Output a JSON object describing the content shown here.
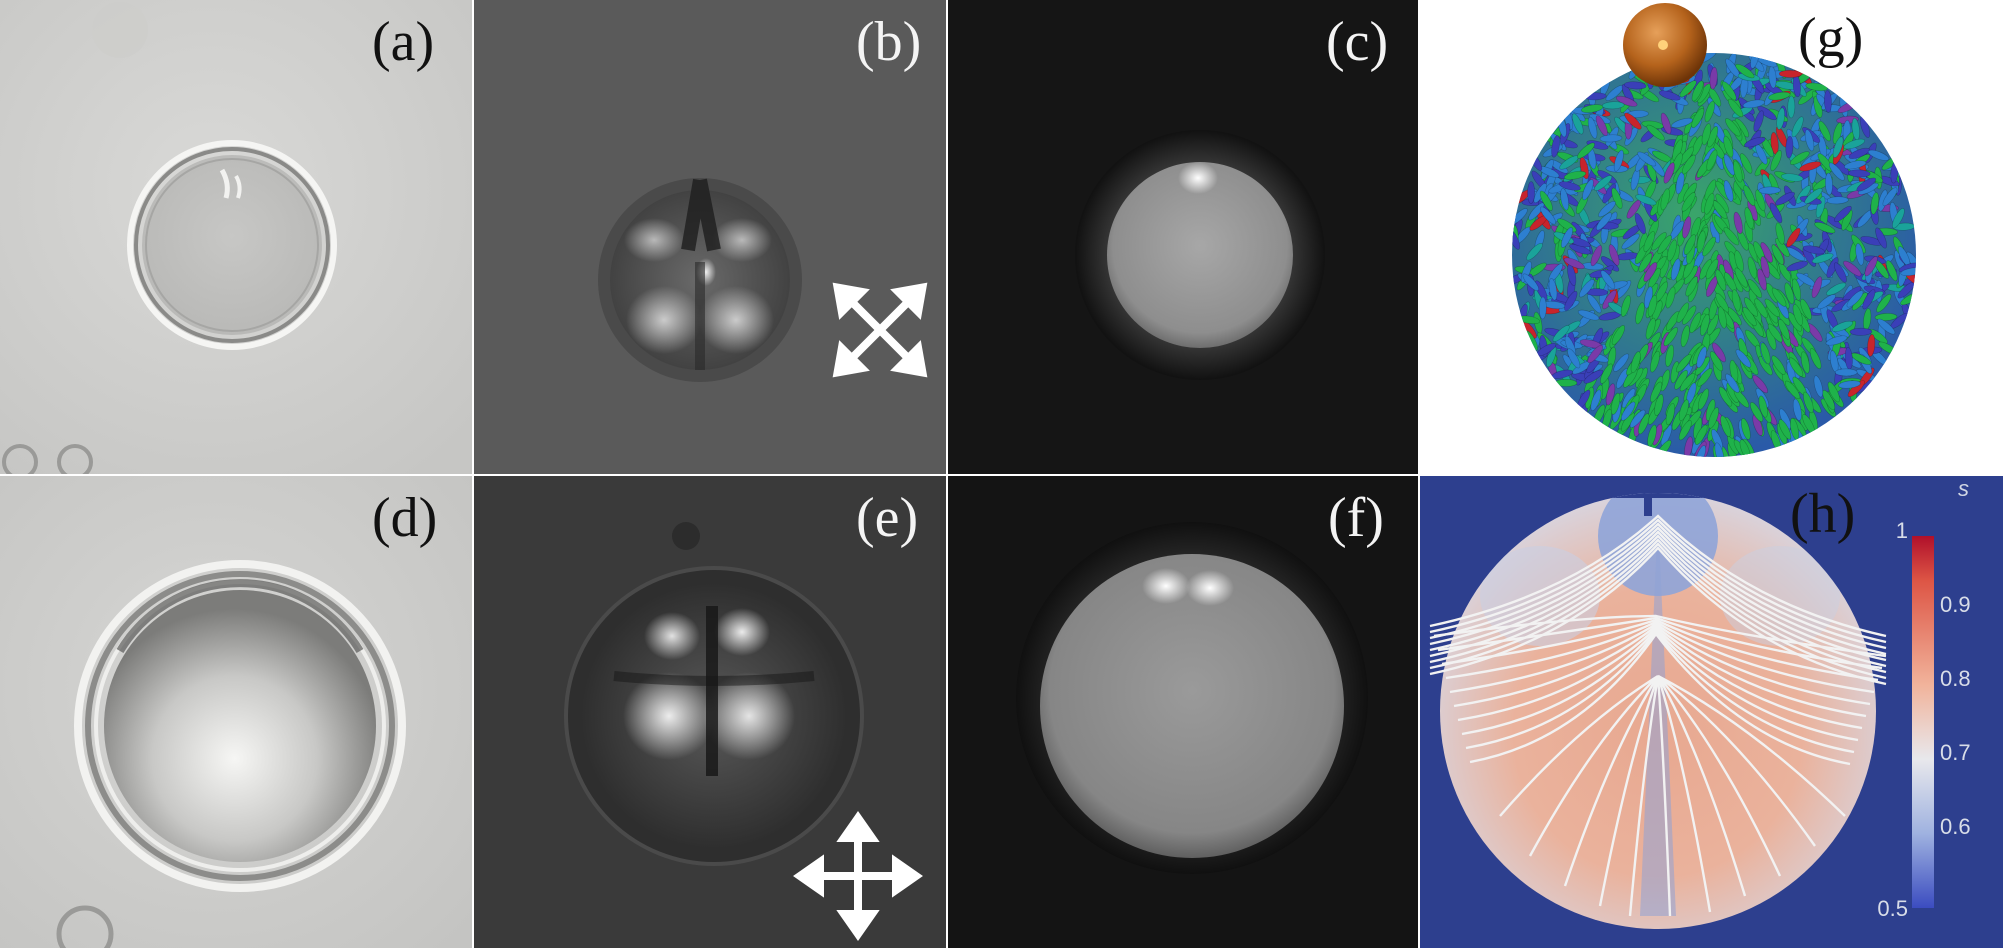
{
  "figure": {
    "panels": [
      {
        "id": "a",
        "label": "(a)"
      },
      {
        "id": "b",
        "label": "(b)"
      },
      {
        "id": "c",
        "label": "(c)"
      },
      {
        "id": "d",
        "label": "(d)"
      },
      {
        "id": "e",
        "label": "(e)"
      },
      {
        "id": "f",
        "label": "(f)"
      },
      {
        "id": "g",
        "label": "(g)"
      },
      {
        "id": "h",
        "label": "(h)"
      }
    ],
    "colorbar": {
      "variable": "s",
      "ticks": [
        "1",
        "0.9",
        "0.8",
        "0.7",
        "0.6",
        "0.5"
      ],
      "colors": {
        "high": "#b0102a",
        "mid": "#eeeeee",
        "low": "#3b4cc0"
      }
    },
    "colors": {
      "h_background": "#2d3f8e",
      "g_particle": "#b5631c",
      "rods": [
        "#1fb24a",
        "#2d7fd0",
        "#3a3fb8",
        "#7a3aa8",
        "#c8242c",
        "#1aa39a"
      ]
    }
  }
}
